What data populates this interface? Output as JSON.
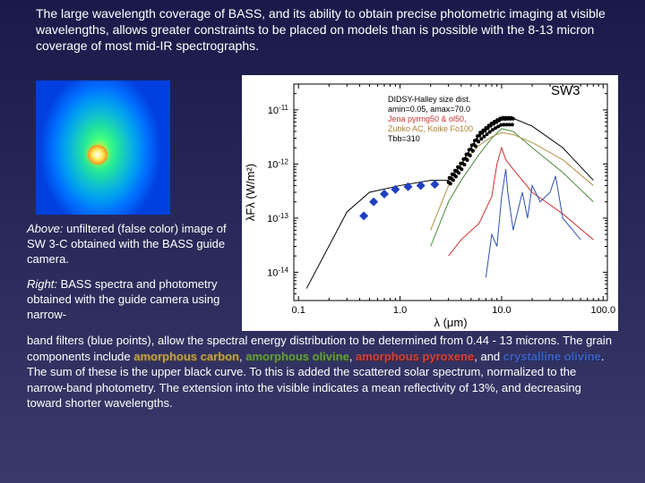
{
  "intro": "The large wavelength coverage of BASS, and its ability to obtain precise photometric imaging at visible wavelengths, allows greater constraints to be placed on models than is possible with the 8-13 micron coverage of most mid-IR spectrographs.",
  "above_caption": {
    "lead": "Above:",
    "rest": " unfiltered (false color) image of SW 3-C obtained with the BASS guide camera."
  },
  "right_caption": {
    "lead": "Right:",
    "rest": " BASS spectra and photometry obtained with the guide camera using narrow-"
  },
  "lower": {
    "part1": "band filters (blue points), allow the spectral energy distribution to be determined from 0.44 - 13 microns. The grain components include ",
    "amorph_carbon": "amorphous carbon",
    "sep1": ", ",
    "amorph_olivine": "amorphous olivine",
    "sep2": ", ",
    "amorph_pyroxene": "amorphous pyroxene",
    "sep3": ", and ",
    "cryst_olivine": "crystalline olivine",
    "part2": ". The sum of these is the upper black curve. To this is added the scattered solar spectrum, normalized to the narrow-band photometry. The extension into the visible indicates a mean reflectivity of 13%, and decreasing toward shorter wavelengths."
  },
  "chart": {
    "title": "SW3",
    "annot": [
      "DIDSY-Halley size dist.",
      "amin=0.05, amax=70.0",
      "Jena pyrmg50 & ol50,",
      "Zubko AC, Koike Fo100",
      "Tbb=310"
    ],
    "annot_colors": [
      "#000000",
      "#000000",
      "#cc3333",
      "#b08030",
      "#000000"
    ],
    "annot_fontsize": 9,
    "xlabel": "λ (μm)",
    "ylabel": "λFλ (W/m²)",
    "label_fontsize": 13,
    "x": {
      "min": 0.09,
      "max": 110,
      "ticks": [
        0.1,
        1.0,
        10.0,
        100.0
      ],
      "log": true
    },
    "y": {
      "min": 3e-15,
      "max": 3e-11,
      "ticks": [
        1e-14,
        1e-13,
        1e-12,
        1e-11
      ],
      "log": true
    },
    "bg": "#ffffff",
    "axis_color": "#000000",
    "series": [
      {
        "name": "sum_black",
        "color": "#000000",
        "width": 1,
        "pts": [
          [
            0.12,
            5e-15
          ],
          [
            0.3,
            1.3e-13
          ],
          [
            0.5,
            3e-13
          ],
          [
            1,
            4e-13
          ],
          [
            2,
            5e-13
          ],
          [
            3,
            5e-13
          ],
          [
            4,
            1e-12
          ],
          [
            6,
            3.5e-12
          ],
          [
            8,
            5.5e-12
          ],
          [
            10,
            7e-12
          ],
          [
            13,
            7e-12
          ],
          [
            20,
            5e-12
          ],
          [
            40,
            2e-12
          ],
          [
            80,
            5e-13
          ]
        ]
      },
      {
        "name": "amorph_pyroxene",
        "color": "#cc3333",
        "width": 1,
        "pts": [
          [
            3,
            2e-14
          ],
          [
            4,
            4e-14
          ],
          [
            6,
            8e-14
          ],
          [
            8,
            2.5e-13
          ],
          [
            9,
            1e-12
          ],
          [
            10,
            2e-12
          ],
          [
            11,
            1.2e-12
          ],
          [
            13,
            8e-13
          ],
          [
            20,
            3e-13
          ],
          [
            40,
            1.2e-13
          ],
          [
            80,
            4e-14
          ]
        ]
      },
      {
        "name": "amorph_olivine",
        "color": "#4a8a3a",
        "width": 1,
        "pts": [
          [
            2,
            3e-14
          ],
          [
            3,
            2e-13
          ],
          [
            4,
            5e-13
          ],
          [
            6,
            1.5e-12
          ],
          [
            8,
            3e-12
          ],
          [
            10,
            4.5e-12
          ],
          [
            13,
            4e-12
          ],
          [
            20,
            2e-12
          ],
          [
            40,
            7e-13
          ],
          [
            80,
            2e-13
          ]
        ]
      },
      {
        "name": "amorph_carbon",
        "color": "#b0904a",
        "width": 1,
        "pts": [
          [
            2,
            6e-14
          ],
          [
            3,
            4e-13
          ],
          [
            4,
            1e-12
          ],
          [
            6,
            2.2e-12
          ],
          [
            8,
            3.2e-12
          ],
          [
            10,
            3.8e-12
          ],
          [
            13,
            3.5e-12
          ],
          [
            20,
            2.5e-12
          ],
          [
            40,
            1.2e-12
          ],
          [
            80,
            4e-13
          ]
        ]
      },
      {
        "name": "cryst_olivine",
        "color": "#3050b0",
        "width": 1,
        "pts": [
          [
            7,
            8e-15
          ],
          [
            8,
            5e-14
          ],
          [
            9,
            3e-14
          ],
          [
            10,
            2.5e-13
          ],
          [
            11,
            8e-13
          ],
          [
            11.5,
            3e-13
          ],
          [
            13,
            6e-14
          ],
          [
            16,
            3e-13
          ],
          [
            18,
            1e-13
          ],
          [
            20,
            4e-13
          ],
          [
            24,
            2e-13
          ],
          [
            30,
            3e-13
          ],
          [
            34,
            6e-13
          ],
          [
            40,
            1e-13
          ],
          [
            60,
            4e-14
          ]
        ]
      }
    ],
    "photometry_points": {
      "color": "#2040c0",
      "marker": "diamond",
      "size": 5,
      "pts": [
        [
          0.44,
          1.1e-13
        ],
        [
          0.55,
          2e-13
        ],
        [
          0.7,
          2.8e-13
        ],
        [
          0.9,
          3.4e-13
        ],
        [
          1.2,
          3.8e-13
        ],
        [
          1.6,
          4e-13
        ],
        [
          2.2,
          4.2e-13
        ]
      ]
    },
    "spectrum_points": {
      "color": "#000000",
      "marker": "dot",
      "size": 2,
      "xrange": [
        3.0,
        13.0
      ],
      "count": 70
    }
  }
}
